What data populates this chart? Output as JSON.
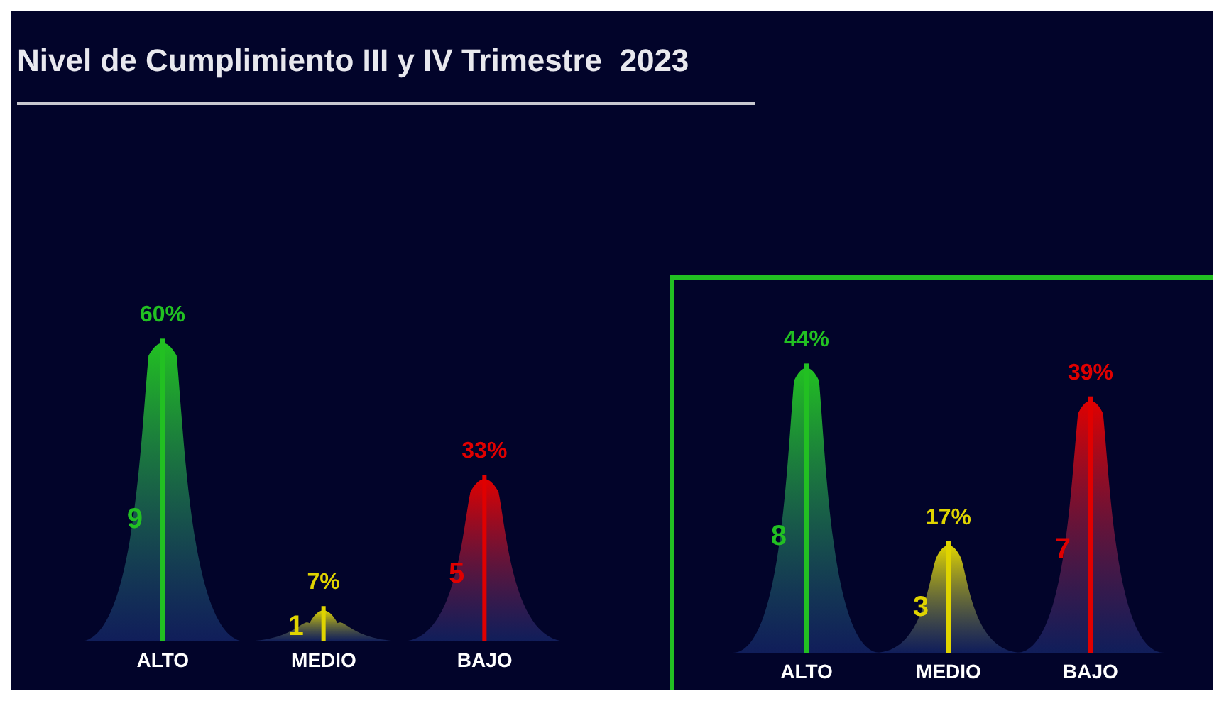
{
  "chart_data": [
    {
      "type": "bar",
      "title": "Nivel de Cumplimiento III y IV Trimestre  2023",
      "categories": [
        "ALTO",
        "MEDIO",
        "BAJO"
      ],
      "values": [
        60,
        7,
        33
      ],
      "colors": [
        "#22c022",
        "#e0d400",
        "#e00000"
      ],
      "value_labels": [
        "60%",
        "7%",
        "33%"
      ],
      "annotations": [
        {
          "text": "9",
          "x": "ALTO"
        },
        {
          "text": "1",
          "x": "MEDIO"
        },
        {
          "text": "5",
          "x": "BAJO"
        }
      ]
    },
    {
      "type": "bar",
      "categories": [
        "ALTO",
        "MEDIO",
        "BAJO"
      ],
      "values": [
        44,
        17,
        39
      ],
      "colors": [
        "#22c022",
        "#e0d400",
        "#e00000"
      ],
      "value_labels": [
        "44%",
        "17%",
        "39%"
      ],
      "annotations": [
        {
          "text": "8",
          "x": "ALTO"
        },
        {
          "text": "3",
          "x": "MEDIO"
        },
        {
          "text": "7",
          "x": "BAJO"
        }
      ]
    }
  ]
}
